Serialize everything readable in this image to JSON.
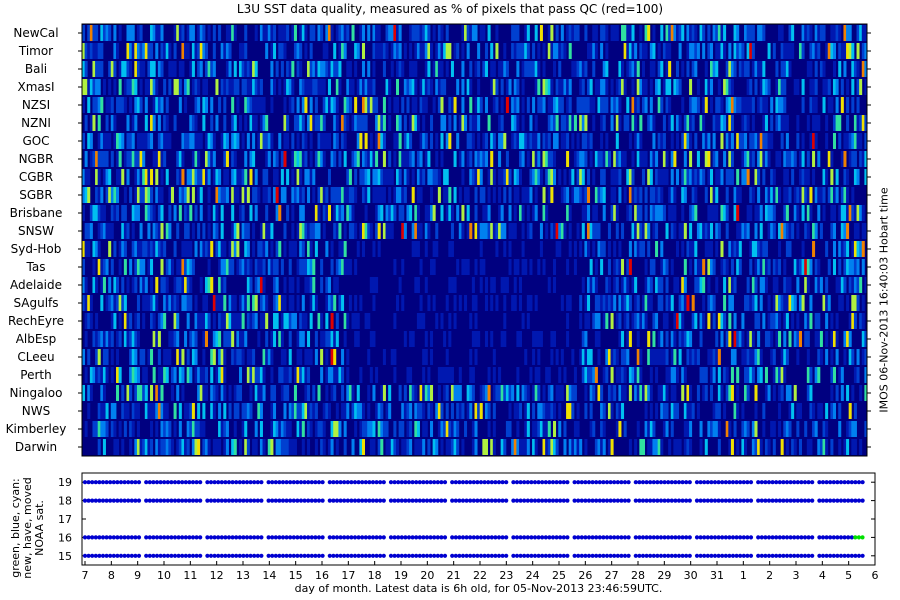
{
  "title": "L3U SST data quality, measured as % of pixels that pass QC (red=100)",
  "right_label": "IMOS 06-Nov-2013 16:40:03 Hobart time",
  "chart_data": [
    {
      "type": "heatmap",
      "title": "L3U SST data quality, measured as % of pixels that pass QC (red=100)",
      "rows": [
        "NewCal",
        "Timor",
        "Bali",
        "XmasI",
        "NZSI",
        "NZNI",
        "GOC",
        "NGBR",
        "CGBR",
        "SGBR",
        "Brisbane",
        "SNSW",
        "Syd-Hob",
        "Tas",
        "Adelaide",
        "SAgulfs",
        "RechEyre",
        "AlbEsp",
        "CLeeu",
        "Perth",
        "Ningaloo",
        "NWS",
        "Kimberley",
        "Darwin"
      ],
      "colorscale": {
        "min": 0,
        "max": 100,
        "note": "red=100"
      },
      "colors": [
        "#000080",
        "#0018b0",
        "#0040d0",
        "#0080f0",
        "#00c0f0",
        "#30e0a0",
        "#b0f040",
        "#f0e000",
        "#f08000",
        "#e00000"
      ]
    },
    {
      "type": "scatter",
      "ylabel": [
        "green, blue, cyan:",
        "new, have, moved",
        "NOAA sat."
      ],
      "xlabel": "day of month. Latest data is 6h old, for 05-Nov-2013 23:46:59UTC.",
      "xticks": [
        "7",
        "8",
        "9",
        "10",
        "11",
        "12",
        "13",
        "14",
        "15",
        "16",
        "17",
        "18",
        "19",
        "20",
        "21",
        "22",
        "23",
        "24",
        "25",
        "26",
        "27",
        "28",
        "29",
        "30",
        "31",
        "1",
        "2",
        "3",
        "4",
        "5",
        "6"
      ],
      "yticks": [
        "15",
        "16",
        "17",
        "18",
        "19"
      ],
      "ylim": [
        14.5,
        19.5
      ],
      "series": [
        {
          "color": "#0000d0",
          "values": [
            {
              "y": 19,
              "x_start": 7.0,
              "x_end": 5.65
            },
            {
              "y": 18,
              "x_start": 7.0,
              "x_end": 5.65
            },
            {
              "y": 16,
              "x_start": 7.0,
              "x_end": 5.2
            },
            {
              "y": 15,
              "x_start": 7.0,
              "x_end": 5.65
            }
          ]
        },
        {
          "color": "#00e000",
          "values": [
            {
              "y": 16,
              "x_start": 5.25,
              "x_end": 5.65
            }
          ]
        }
      ]
    }
  ]
}
